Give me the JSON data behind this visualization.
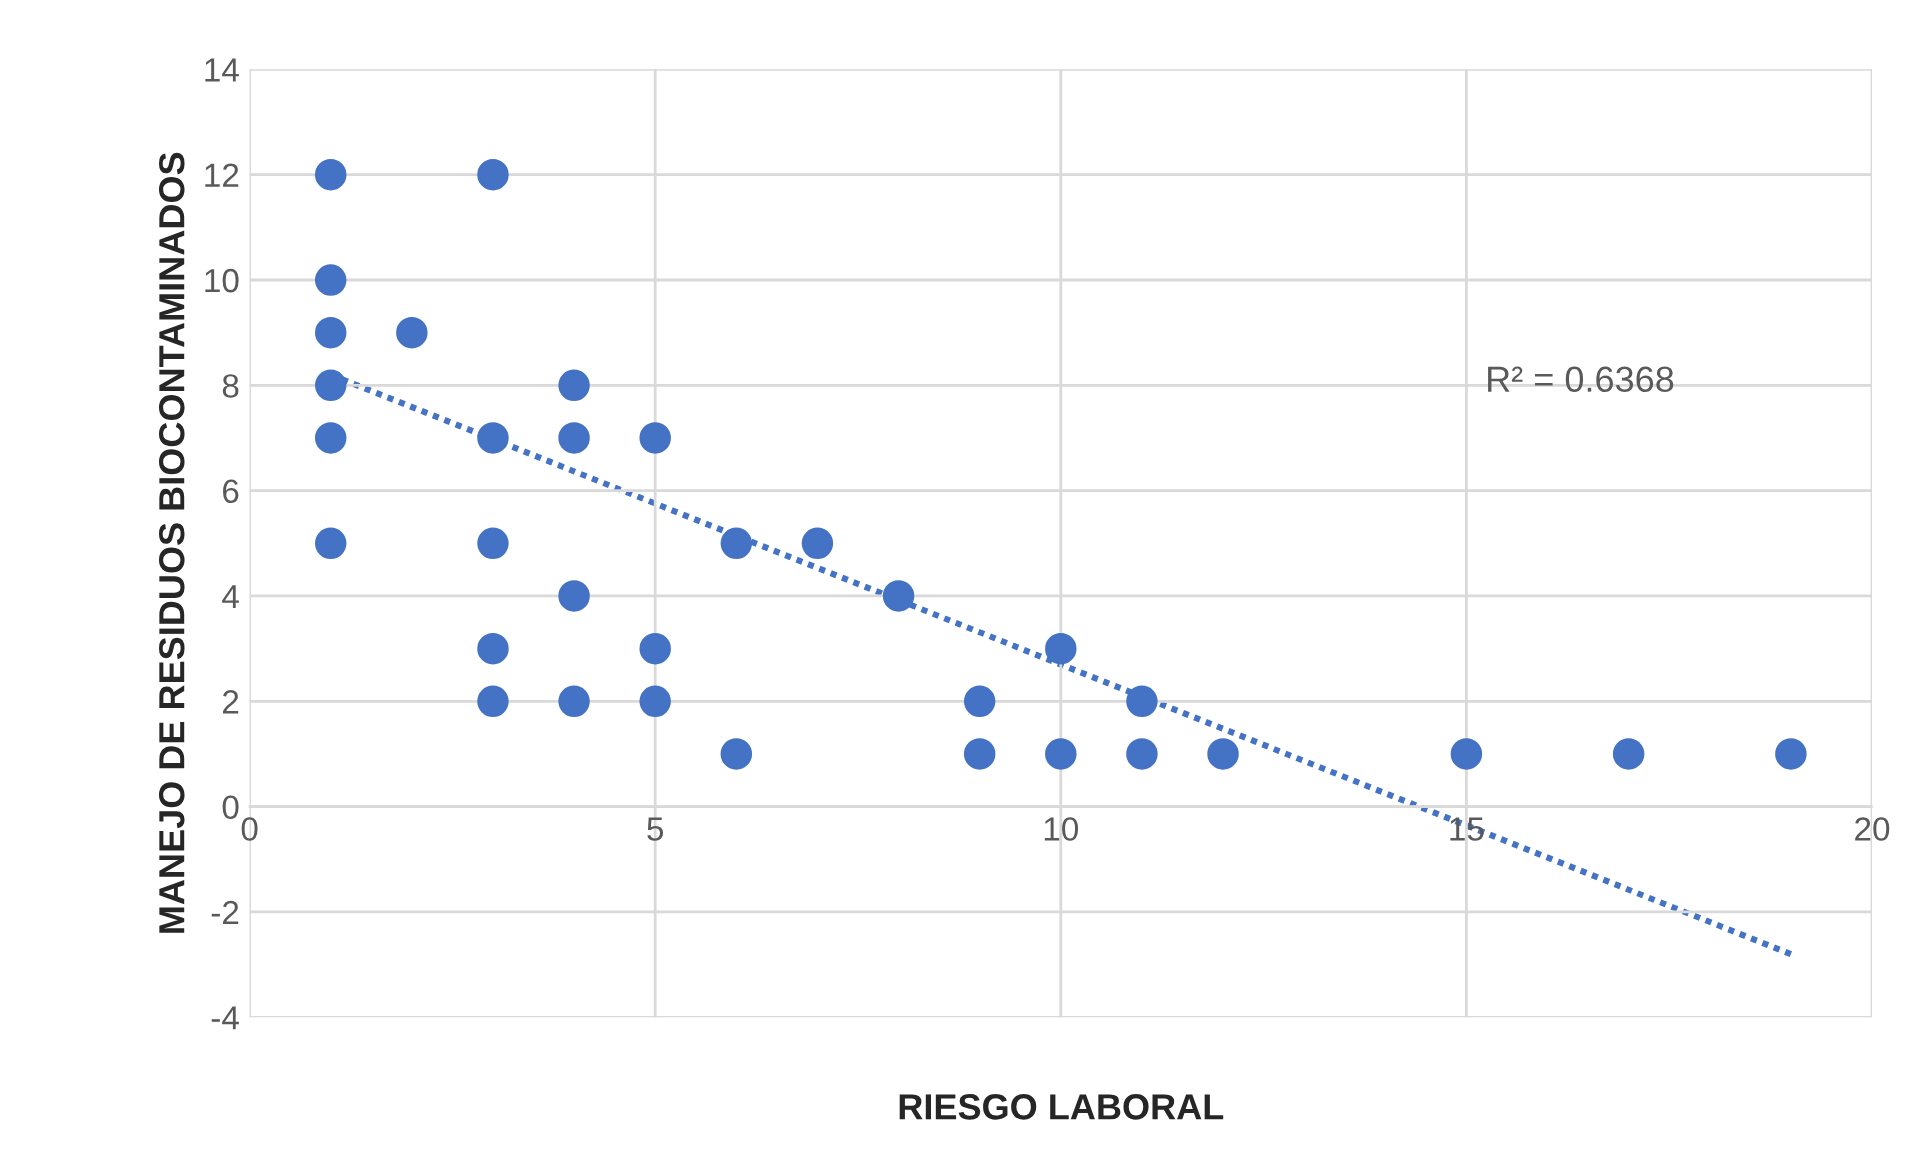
{
  "chart_data": {
    "type": "scatter",
    "xlabel": "RIESGO LABORAL",
    "ylabel": "MANEJO DE RESIDUOS BIOCONTAMINADOS",
    "series": [
      {
        "color": "#4472c4",
        "marker": "circle",
        "x": [
          1,
          1,
          1,
          1,
          1,
          1,
          2,
          3,
          3,
          3,
          3,
          3,
          4,
          4,
          4,
          4,
          5,
          5,
          5,
          6,
          6,
          7,
          8,
          9,
          9,
          10,
          10,
          11,
          11,
          12,
          15,
          17,
          19
        ],
        "values": [
          12,
          10,
          9,
          8,
          7,
          5,
          9,
          12,
          7,
          5,
          3,
          2,
          8,
          7,
          4,
          2,
          7,
          3,
          2,
          5,
          1,
          5,
          4,
          2,
          1,
          3,
          1,
          2,
          1,
          1,
          1,
          1,
          1
        ]
      },
      {
        "type": "line",
        "color": "#4472c4",
        "line_style": "dotted",
        "x": [
          1,
          19
        ],
        "values": [
          8.2,
          -2.8
        ]
      }
    ],
    "annotations": [
      "R² = 0.6368"
    ],
    "xlim": [
      0,
      20
    ],
    "xticks": [
      0,
      5,
      10,
      15,
      20
    ],
    "ylim": [
      -4,
      14
    ],
    "yticks": [
      -4,
      -2,
      0,
      2,
      4,
      6,
      8,
      10,
      12,
      14
    ],
    "grid": true
  }
}
